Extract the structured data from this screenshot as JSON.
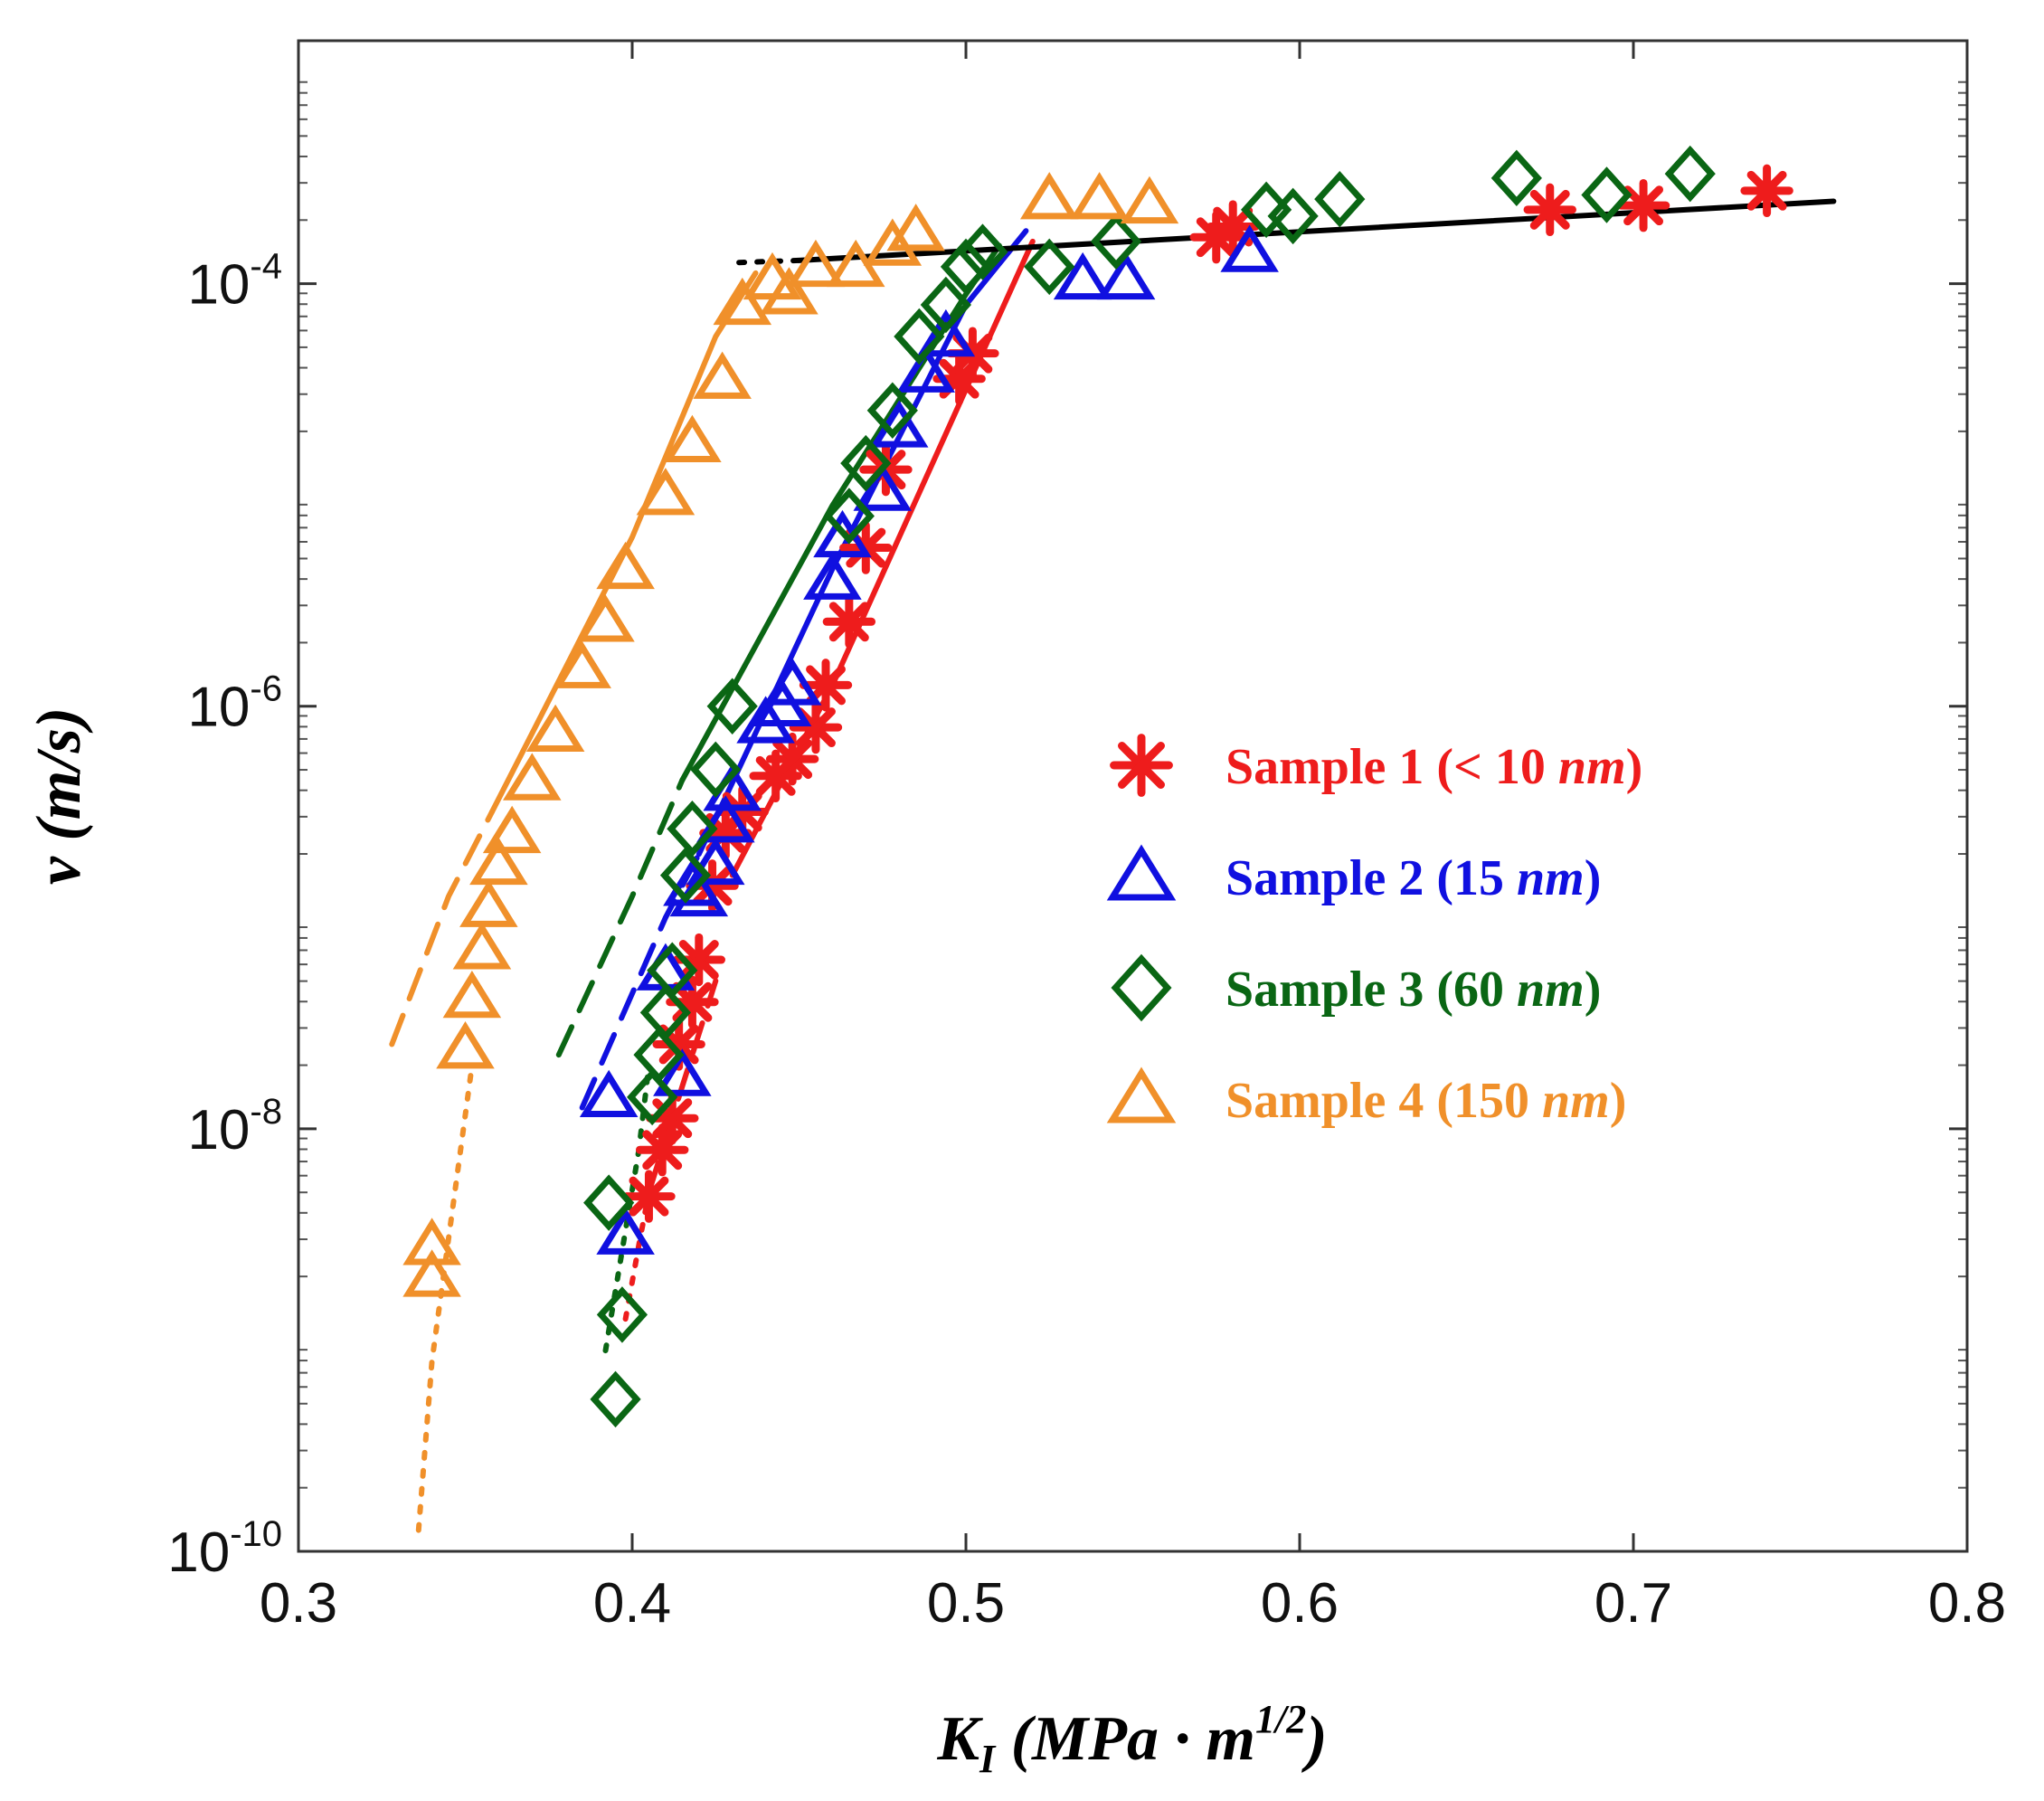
{
  "chart_data": {
    "type": "scatter",
    "title": "",
    "xlabel": "K_I (MPa·m^1/2)",
    "ylabel": "v (m/s)",
    "xlabel_parts": [
      "K",
      "I",
      " (MPa · m",
      "1/2",
      ")"
    ],
    "ylabel_parts": [
      "v (m/s)"
    ],
    "xlim": [
      0.3,
      0.8
    ],
    "ylim_log10": [
      -10,
      -3
    ],
    "yscale": "log",
    "x_ticks": [
      0.3,
      0.4,
      0.5,
      0.6,
      0.7,
      0.8
    ],
    "x_tick_labels": [
      "0.3",
      "0.4",
      "0.5",
      "0.6",
      "0.7",
      "0.8"
    ],
    "y_ticks_log10": [
      -10,
      -8,
      -6,
      -4
    ],
    "y_tick_labels": [
      {
        "base": "10",
        "exp": "-10"
      },
      {
        "base": "10",
        "exp": "-8"
      },
      {
        "base": "10",
        "exp": "-6"
      },
      {
        "base": "10",
        "exp": "-4"
      }
    ],
    "legend_position": "center-right",
    "series": [
      {
        "name": "Sample 1 (< 10 nm)",
        "label_prefix": "Sample 1 (< 10 ",
        "label_unit": "nm",
        "label_suffix": ")",
        "marker": "asterisk",
        "color": "#ee1c1c",
        "points": [
          [
            0.405,
            -8.32
          ],
          [
            0.409,
            -8.1
          ],
          [
            0.412,
            -7.95
          ],
          [
            0.414,
            -7.6
          ],
          [
            0.418,
            -7.4
          ],
          [
            0.42,
            -7.2
          ],
          [
            0.424,
            -6.85
          ],
          [
            0.428,
            -6.6
          ],
          [
            0.433,
            -6.5
          ],
          [
            0.443,
            -6.33
          ],
          [
            0.448,
            -6.25
          ],
          [
            0.455,
            -6.1
          ],
          [
            0.458,
            -5.9
          ],
          [
            0.465,
            -5.6
          ],
          [
            0.47,
            -5.25
          ],
          [
            0.476,
            -4.88
          ],
          [
            0.498,
            -4.45
          ],
          [
            0.502,
            -4.33
          ],
          [
            0.575,
            -3.78
          ],
          [
            0.58,
            -3.73
          ],
          [
            0.675,
            -3.65
          ],
          [
            0.703,
            -3.63
          ],
          [
            0.74,
            -3.56
          ]
        ],
        "fit_lines": [
          {
            "style": "dotted",
            "points": [
              [
                0.398,
                -8.9
              ],
              [
                0.402,
                -8.55
              ],
              [
                0.405,
                -8.3
              ]
            ]
          },
          {
            "style": "dashed",
            "points": [
              [
                0.405,
                -8.3
              ],
              [
                0.415,
                -7.8
              ],
              [
                0.425,
                -7.3
              ]
            ]
          },
          {
            "style": "solid",
            "points": [
              [
                0.43,
                -6.8
              ],
              [
                0.46,
                -5.9
              ],
              [
                0.5,
                -4.5
              ],
              [
                0.52,
                -3.8
              ]
            ]
          }
        ]
      },
      {
        "name": "Sample 2 (15 nm)",
        "label_prefix": "Sample 2 (15 ",
        "label_unit": "nm",
        "label_suffix": ")",
        "marker": "triangle",
        "color": "#1010e0",
        "points": [
          [
            0.393,
            -7.85
          ],
          [
            0.398,
            -8.5
          ],
          [
            0.41,
            -7.25
          ],
          [
            0.415,
            -7.75
          ],
          [
            0.418,
            -6.85
          ],
          [
            0.42,
            -6.9
          ],
          [
            0.425,
            -6.75
          ],
          [
            0.428,
            -6.55
          ],
          [
            0.43,
            -6.4
          ],
          [
            0.44,
            -6.08
          ],
          [
            0.445,
            -6.0
          ],
          [
            0.448,
            -5.9
          ],
          [
            0.46,
            -5.4
          ],
          [
            0.463,
            -5.2
          ],
          [
            0.475,
            -4.98
          ],
          [
            0.48,
            -4.68
          ],
          [
            0.488,
            -4.42
          ],
          [
            0.494,
            -4.25
          ],
          [
            0.535,
            -3.98
          ],
          [
            0.548,
            -3.98
          ],
          [
            0.585,
            -3.85
          ]
        ],
        "fit_lines": [
          {
            "style": "dashed",
            "points": [
              [
                0.385,
                -7.9
              ],
              [
                0.41,
                -7.0
              ],
              [
                0.42,
                -6.7
              ]
            ]
          },
          {
            "style": "solid",
            "points": [
              [
                0.42,
                -6.7
              ],
              [
                0.46,
                -5.35
              ],
              [
                0.5,
                -4.1
              ],
              [
                0.518,
                -3.75
              ]
            ]
          }
        ]
      },
      {
        "name": "Sample 3 (60 nm)",
        "label_prefix": "Sample 3 (60 ",
        "label_unit": "nm",
        "label_suffix": ")",
        "marker": "diamond",
        "color": "#0a6614",
        "points": [
          [
            0.395,
            -9.28
          ],
          [
            0.397,
            -8.88
          ],
          [
            0.393,
            -8.35
          ],
          [
            0.406,
            -7.85
          ],
          [
            0.408,
            -7.65
          ],
          [
            0.41,
            -7.45
          ],
          [
            0.412,
            -7.25
          ],
          [
            0.416,
            -6.8
          ],
          [
            0.418,
            -6.58
          ],
          [
            0.425,
            -6.3
          ],
          [
            0.43,
            -6.0
          ],
          [
            0.465,
            -5.1
          ],
          [
            0.47,
            -4.85
          ],
          [
            0.478,
            -4.6
          ],
          [
            0.486,
            -4.25
          ],
          [
            0.494,
            -4.1
          ],
          [
            0.5,
            -3.92
          ],
          [
            0.505,
            -3.85
          ],
          [
            0.525,
            -3.92
          ],
          [
            0.545,
            -3.8
          ],
          [
            0.59,
            -3.65
          ],
          [
            0.598,
            -3.68
          ],
          [
            0.612,
            -3.6
          ],
          [
            0.665,
            -3.5
          ],
          [
            0.692,
            -3.58
          ],
          [
            0.717,
            -3.48
          ]
        ],
        "fit_lines": [
          {
            "style": "dotted",
            "points": [
              [
                0.392,
                -9.05
              ],
              [
                0.402,
                -8.1
              ],
              [
                0.405,
                -7.7
              ]
            ]
          },
          {
            "style": "dashed",
            "points": [
              [
                0.378,
                -7.65
              ],
              [
                0.4,
                -6.9
              ],
              [
                0.415,
                -6.35
              ]
            ]
          },
          {
            "style": "solid",
            "points": [
              [
                0.415,
                -6.35
              ],
              [
                0.46,
                -5.05
              ],
              [
                0.5,
                -4.05
              ],
              [
                0.51,
                -3.82
              ]
            ]
          }
        ]
      },
      {
        "name": "Sample 4 (150 nm)",
        "label_prefix": "Sample 4 (150 ",
        "label_unit": "nm",
        "label_suffix": ")",
        "marker": "triangle",
        "color": "#f0902a",
        "points": [
          [
            0.34,
            -8.55
          ],
          [
            0.34,
            -8.7
          ],
          [
            0.35,
            -7.62
          ],
          [
            0.352,
            -7.38
          ],
          [
            0.355,
            -7.15
          ],
          [
            0.357,
            -6.95
          ],
          [
            0.36,
            -6.75
          ],
          [
            0.364,
            -6.6
          ],
          [
            0.37,
            -6.35
          ],
          [
            0.377,
            -6.12
          ],
          [
            0.385,
            -5.82
          ],
          [
            0.392,
            -5.6
          ],
          [
            0.398,
            -5.35
          ],
          [
            0.41,
            -5.0
          ],
          [
            0.418,
            -4.75
          ],
          [
            0.427,
            -4.45
          ],
          [
            0.433,
            -4.1
          ],
          [
            0.442,
            -3.98
          ],
          [
            0.447,
            -4.05
          ],
          [
            0.455,
            -3.92
          ],
          [
            0.467,
            -3.92
          ],
          [
            0.478,
            -3.82
          ],
          [
            0.485,
            -3.75
          ],
          [
            0.525,
            -3.6
          ],
          [
            0.54,
            -3.6
          ],
          [
            0.555,
            -3.62
          ]
        ],
        "fit_lines": [
          {
            "style": "dotted",
            "points": [
              [
                0.336,
                -9.9
              ],
              [
                0.34,
                -9.1
              ],
              [
                0.352,
                -7.7
              ]
            ]
          },
          {
            "style": "dashed",
            "points": [
              [
                0.328,
                -7.6
              ],
              [
                0.345,
                -6.9
              ],
              [
                0.358,
                -6.5
              ]
            ]
          },
          {
            "style": "solid",
            "points": [
              [
                0.358,
                -6.5
              ],
              [
                0.4,
                -5.2
              ],
              [
                0.425,
                -4.25
              ],
              [
                0.437,
                -3.95
              ]
            ]
          }
        ]
      }
    ],
    "plateau_line": {
      "color": "#000000",
      "dotted_points": [
        [
          0.432,
          -3.9
        ],
        [
          0.45,
          -3.89
        ]
      ],
      "solid_points": [
        [
          0.45,
          -3.89
        ],
        [
          0.76,
          -3.61
        ]
      ]
    }
  }
}
